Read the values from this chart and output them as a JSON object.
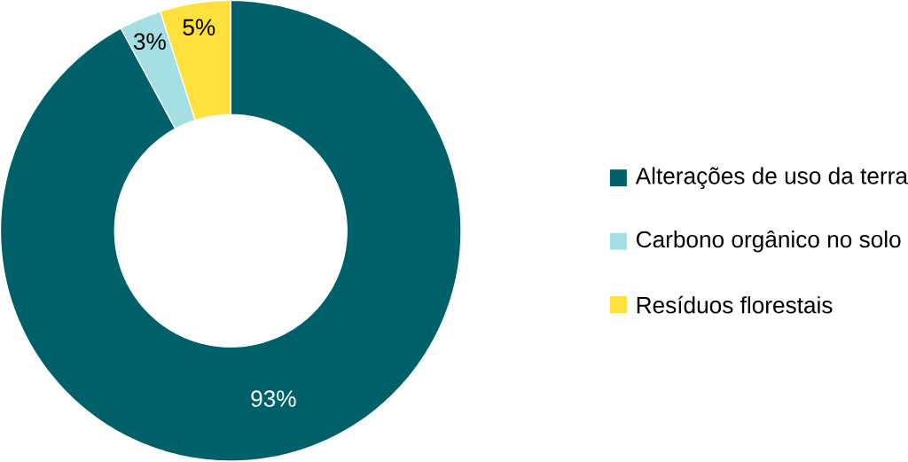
{
  "chart_data": {
    "type": "donut",
    "categories": [
      "Alterações de uso da terra",
      "Carbono orgânico no solo",
      "Resíduos florestais"
    ],
    "values": [
      93,
      3,
      5
    ],
    "colors": [
      "#00606a",
      "#a6dfe3",
      "#ffe03c"
    ],
    "value_labels": [
      "93%",
      "3%",
      "5%"
    ],
    "legend": "right"
  }
}
